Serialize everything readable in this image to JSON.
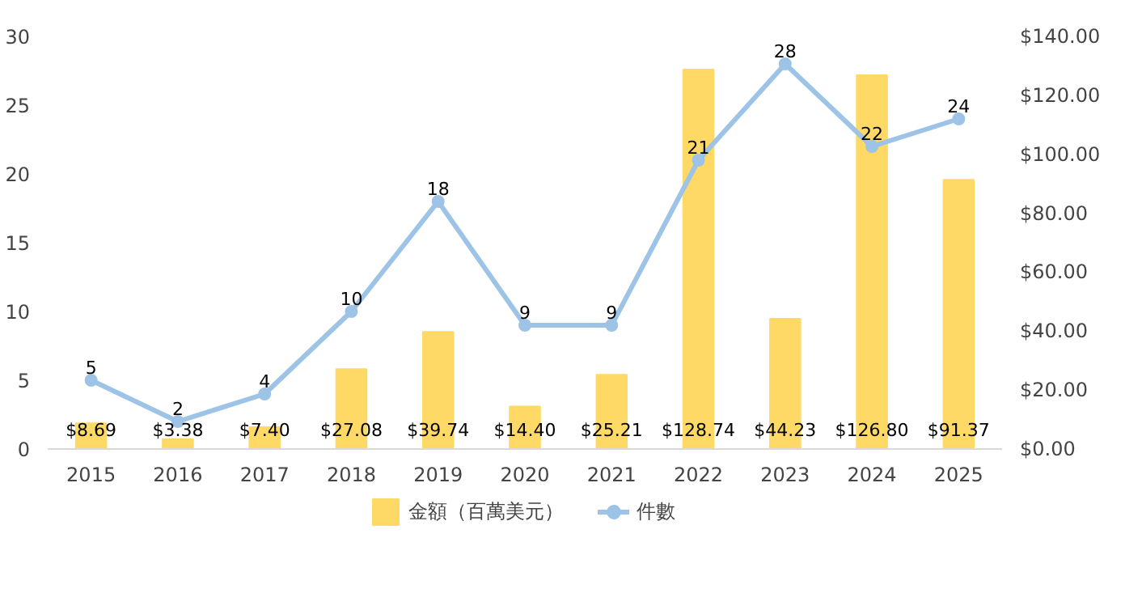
{
  "chart_data": {
    "type": "bar",
    "categories": [
      "2015",
      "2016",
      "2017",
      "2018",
      "2019",
      "2020",
      "2021",
      "2022",
      "2023",
      "2024",
      "2025"
    ],
    "series": [
      {
        "name": "金額（百萬美元）",
        "axis": "y2",
        "color": "#ffd966",
        "values": [
          8.69,
          3.38,
          7.4,
          27.08,
          39.74,
          14.4,
          25.21,
          128.74,
          44.23,
          126.8,
          91.37
        ],
        "value_labels": [
          "$8.69",
          "$3.38",
          "$7.40",
          "$27.08",
          "$39.74",
          "$14.40",
          "$25.21",
          "$128.74",
          "$44.23",
          "$126.80",
          "$91.37"
        ]
      },
      {
        "name": "件數",
        "type": "line",
        "color": "#9dc3e6",
        "marker": "circle",
        "values": [
          5,
          2,
          4,
          10,
          18,
          9,
          9,
          21,
          28,
          22,
          24
        ],
        "value_labels": [
          "5",
          "2",
          "4",
          "10",
          "18",
          "9",
          "9",
          "21",
          "28",
          "22",
          "24"
        ]
      }
    ],
    "ylim": [
      0,
      30
    ],
    "yticks": [
      0,
      5,
      10,
      15,
      20,
      25,
      30
    ],
    "y2lim": [
      0,
      140
    ],
    "y2ticks": [
      {
        "value": 0,
        "label": "$0.00"
      },
      {
        "value": 20,
        "label": "$20.00"
      },
      {
        "value": 40,
        "label": "$40.00"
      },
      {
        "value": 60,
        "label": "$60.00"
      },
      {
        "value": 80,
        "label": "$80.00"
      },
      {
        "value": 100,
        "label": "$100.00"
      },
      {
        "value": 120,
        "label": "$120.00"
      },
      {
        "value": 140,
        "label": "$140.00"
      }
    ],
    "grid": false,
    "legend": "bottom"
  }
}
